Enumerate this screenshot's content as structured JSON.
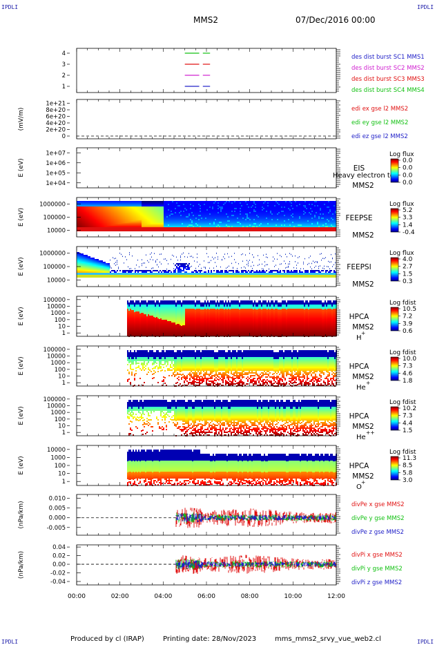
{
  "corner_label": "IPDLI",
  "header": {
    "title": "MMS2",
    "date": "07/Dec/2016 00:00"
  },
  "footer": {
    "produced_by": "Produced by cl (IRAP)",
    "printing_date": "Printing date: 28/Nov/2023",
    "file": "mms_mms2_srvy_vue_web2.cl"
  },
  "chart_data": {
    "type": "area",
    "x_ticks": [
      "00:00",
      "02:00",
      "04:00",
      "06:00",
      "08:00",
      "10:00",
      "12:00"
    ],
    "xlim": [
      "00:00",
      "12:00"
    ],
    "panels": [
      {
        "id": "des-burst",
        "type": "line",
        "yticks": [
          "1",
          "2",
          "3",
          "4"
        ],
        "legend": [
          {
            "text": "des dist burst SC1 MMS1",
            "color": "#2020c8"
          },
          {
            "text": "des dist burst SC2 MMS2",
            "color": "#d020d0"
          },
          {
            "text": "des dist burst SC3 MMS3",
            "color": "#e01010"
          },
          {
            "text": "des dist burst SC4 MMS4",
            "color": "#10c010"
          }
        ],
        "segments": [
          {
            "level": 4,
            "color": "#10c010",
            "from": "05:00",
            "to": "05:40"
          },
          {
            "level": 4,
            "color": "#10c010",
            "from": "05:50",
            "to": "06:10"
          },
          {
            "level": 3,
            "color": "#e01010",
            "from": "05:00",
            "to": "05:40"
          },
          {
            "level": 3,
            "color": "#e01010",
            "from": "05:50",
            "to": "06:10"
          },
          {
            "level": 2,
            "color": "#d020d0",
            "from": "05:00",
            "to": "05:40"
          },
          {
            "level": 2,
            "color": "#d020d0",
            "from": "05:50",
            "to": "06:10"
          },
          {
            "level": 1,
            "color": "#2020c8",
            "from": "05:00",
            "to": "05:40"
          },
          {
            "level": 1,
            "color": "#2020c8",
            "from": "05:50",
            "to": "06:10"
          }
        ]
      },
      {
        "id": "edi",
        "type": "line",
        "ylabel": "(mV/m)",
        "yticks": [
          "0",
          "2e+20",
          "4e+20",
          "6e+20",
          "8e+20",
          "1e+21"
        ],
        "legend": [
          {
            "text": "edi ex gse l2 MMS2",
            "color": "#e01010"
          },
          {
            "text": "edi ey gse l2 MMS2",
            "color": "#10c010"
          },
          {
            "text": "edi ez gse l2 MMS2",
            "color": "#2020c8"
          }
        ]
      },
      {
        "id": "eis",
        "type": "heatmap",
        "ylabel": "E (eV)",
        "yticks": [
          "1e+04",
          "1e+05",
          "1e+06",
          "1e+07"
        ],
        "instrument": "EIS",
        "spacecraft": "MMS2",
        "overlap_text": "Heavy electron to",
        "cbar_title": "Log flux",
        "cbar_ticks": [
          "0.0",
          "0.0",
          "0.0",
          "0.0"
        ]
      },
      {
        "id": "feeps-e",
        "type": "heatmap",
        "ylabel": "E (eV)",
        "yticks": [
          "10000",
          "100000",
          "1000000"
        ],
        "instrument": "FEEPSE",
        "spacecraft": "MMS2",
        "cbar_title": "Log flux",
        "cbar_ticks": [
          "5.2",
          "3.3",
          "1.4",
          "-0.4"
        ]
      },
      {
        "id": "feeps-i",
        "type": "heatmap",
        "ylabel": "E (eV)",
        "yticks": [
          "10000",
          "100000",
          "1000000"
        ],
        "instrument": "FEEPSI",
        "spacecraft": "MMS2",
        "cbar_title": "Log flux",
        "cbar_ticks": [
          "4.0",
          "2.7",
          "1.5",
          "0.3"
        ]
      },
      {
        "id": "hpca-h",
        "type": "heatmap",
        "ylabel": "E (eV)",
        "yticks": [
          "1",
          "10",
          "100",
          "1000",
          "10000",
          "100000"
        ],
        "instrument": "HPCA",
        "spacecraft": "MMS2",
        "species": "H",
        "charge": "+",
        "cbar_title": "Log fdist",
        "cbar_ticks": [
          "10.5",
          "7.2",
          "3.9",
          "0.6"
        ]
      },
      {
        "id": "hpca-he",
        "type": "heatmap",
        "ylabel": "E (eV)",
        "yticks": [
          "1",
          "10",
          "100",
          "1000",
          "10000",
          "100000"
        ],
        "instrument": "HPCA",
        "spacecraft": "MMS2",
        "species": "He",
        "charge": "+",
        "cbar_title": "Log fdist",
        "cbar_ticks": [
          "10.0",
          "7.3",
          "4.6",
          "1.8"
        ]
      },
      {
        "id": "hpca-he2",
        "type": "heatmap",
        "ylabel": "E (eV)",
        "yticks": [
          "1",
          "10",
          "100",
          "1000",
          "10000",
          "100000"
        ],
        "instrument": "HPCA",
        "spacecraft": "MMS2",
        "species": "He",
        "charge": "++",
        "cbar_title": "Log fdist",
        "cbar_ticks": [
          "10.2",
          "7.3",
          "4.4",
          "1.5"
        ]
      },
      {
        "id": "hpca-o",
        "type": "heatmap",
        "ylabel": "E (eV)",
        "yticks": [
          "1",
          "10",
          "100",
          "1000",
          "10000"
        ],
        "instrument": "HPCA",
        "spacecraft": "MMS2",
        "species": "O",
        "charge": "+",
        "cbar_title": "Log fdist",
        "cbar_ticks": [
          "11.3",
          "8.5",
          "5.8",
          "3.0"
        ]
      },
      {
        "id": "divpe",
        "type": "line",
        "ylabel": "(nPa/km)",
        "yticks": [
          "-0.005",
          "0.000",
          "0.005",
          "0.010"
        ],
        "ylim": [
          -0.009,
          0.012
        ],
        "legend": [
          {
            "text": "divPe x gse MMS2",
            "color": "#e01010"
          },
          {
            "text": "divPe y gse MMS2",
            "color": "#10c010"
          },
          {
            "text": "divPe z gse MMS2",
            "color": "#2020c8"
          }
        ]
      },
      {
        "id": "divpi",
        "type": "line",
        "ylabel": "(nPa/km)",
        "yticks": [
          "-0.04",
          "-0.02",
          "0.00",
          "0.02",
          "0.04"
        ],
        "ylim": [
          -0.048,
          0.045
        ],
        "legend": [
          {
            "text": "divPi x gse MMS2",
            "color": "#e01010"
          },
          {
            "text": "divPi y gse MMS2",
            "color": "#10c010"
          },
          {
            "text": "divPi z gse MMS2",
            "color": "#2020c8"
          }
        ]
      }
    ]
  }
}
